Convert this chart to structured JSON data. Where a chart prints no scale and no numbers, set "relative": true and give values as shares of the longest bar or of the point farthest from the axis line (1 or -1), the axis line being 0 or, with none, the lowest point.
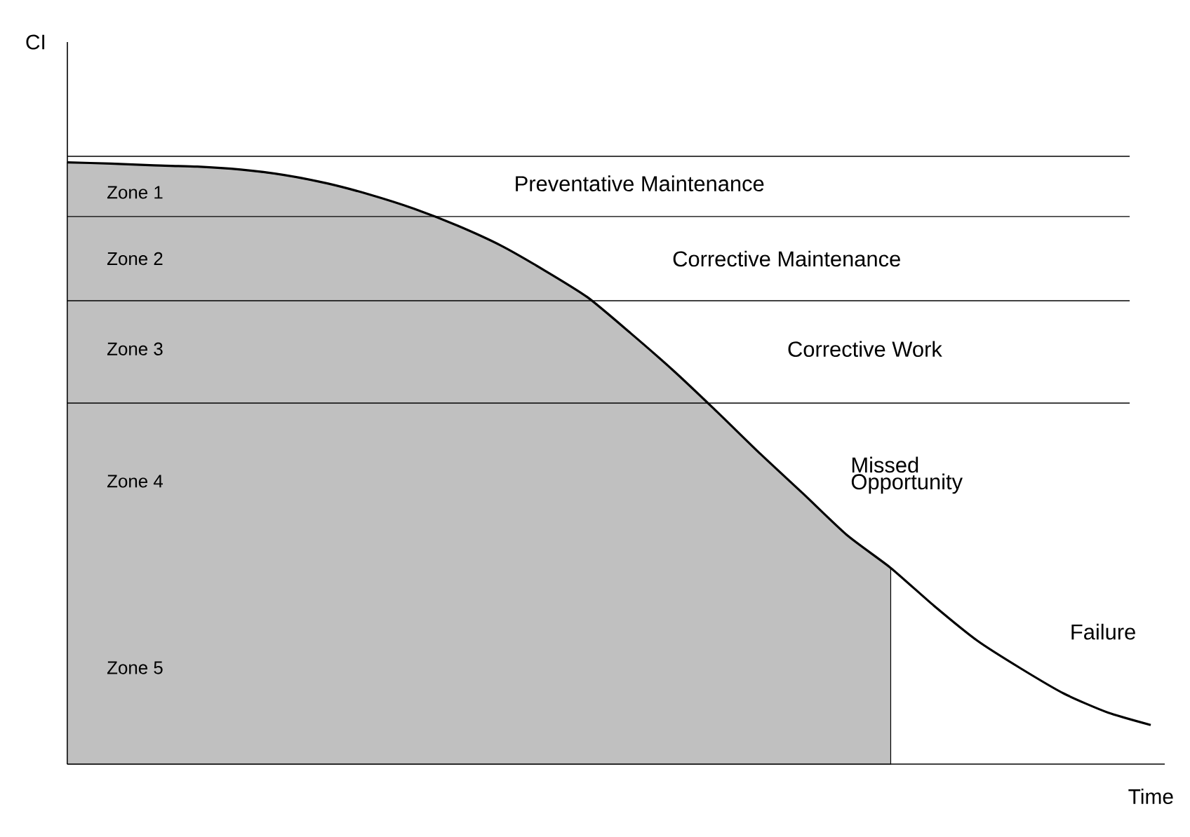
{
  "chart_data": {
    "type": "line",
    "relative": true,
    "xlabel": "Time",
    "categories": [
      null,
      null,
      null,
      null,
      null,
      null,
      null,
      null,
      null,
      null,
      null,
      null,
      null,
      null,
      null,
      null,
      null,
      null,
      null,
      null,
      null,
      null,
      null,
      null,
      null,
      null
    ],
    "series": [
      {
        "type": "area",
        "color": "#c0c0c0",
        "values": [
          1.0,
          0.998,
          0.995,
          0.993,
          0.988,
          0.979,
          0.965,
          0.946,
          0.923,
          0.895,
          0.862,
          0.821,
          0.776,
          0.716,
          0.653,
          0.585,
          0.515,
          0.448,
          0.38,
          0.326,
          null,
          null,
          null,
          null,
          null,
          null
        ]
      },
      {
        "color": "#000000",
        "values": [
          1.0,
          0.998,
          0.995,
          0.993,
          0.988,
          0.979,
          0.965,
          0.946,
          0.923,
          0.895,
          0.862,
          0.821,
          0.776,
          0.716,
          0.653,
          0.585,
          0.515,
          0.448,
          0.38,
          0.326,
          0.263,
          0.205,
          0.159,
          0.117,
          0.086,
          0.065
        ]
      }
    ],
    "ref_lines": [
      {
        "axis": "y",
        "value": 1.01
      },
      {
        "axis": "y",
        "value": 0.91
      },
      {
        "axis": "y",
        "value": 0.77
      },
      {
        "axis": "y",
        "value": 0.6
      }
    ],
    "annotations": [
      "CI",
      "Zone 1",
      "Zone 2",
      "Zone 3",
      "Zone 4",
      "Zone 5",
      "Preventative Maintenance",
      "Corrective Maintenance",
      "Corrective Work",
      "Missed Opportunity",
      "Failure"
    ]
  }
}
